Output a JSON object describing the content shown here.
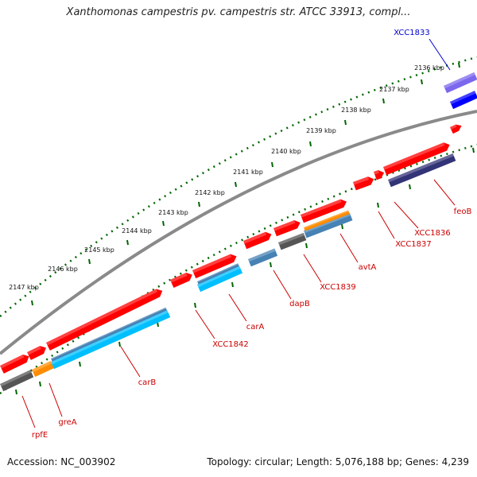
{
  "title": "Xanthomonas campestris pv. campestris str. ATCC 33913, compl...",
  "footer": {
    "accession": "Accession: NC_003902",
    "topology": "Topology: circular; Length: 5,076,188 bp; Genes: 4,239"
  },
  "ruler": [
    "2136 kbp",
    "2137 kbp",
    "2138 kbp",
    "2139 kbp",
    "2140 kbp",
    "2141 kbp",
    "2142 kbp",
    "2143 kbp",
    "2144 kbp",
    "2145 kbp",
    "2146 kbp",
    "2147 kbp"
  ],
  "genes": [
    "XCC1833",
    "feoB",
    "XCC1836",
    "XCC1837",
    "avtA",
    "XCC1839",
    "dapB",
    "carA",
    "XCC1842",
    "carB",
    "greA",
    "rpfE"
  ],
  "colors": {
    "forward": "#ff0000",
    "label": "#cc0000",
    "highlight": "#0000cc",
    "backbone": "#777777",
    "ruler_dots": "#006600",
    "cds_blue": "#4682b4",
    "cds_cyan": "#00bfff",
    "cds_orange": "#ff8c00",
    "cds_gray": "#555555",
    "cds_navy": "#333377",
    "cds_purple": "#7b68ee"
  }
}
